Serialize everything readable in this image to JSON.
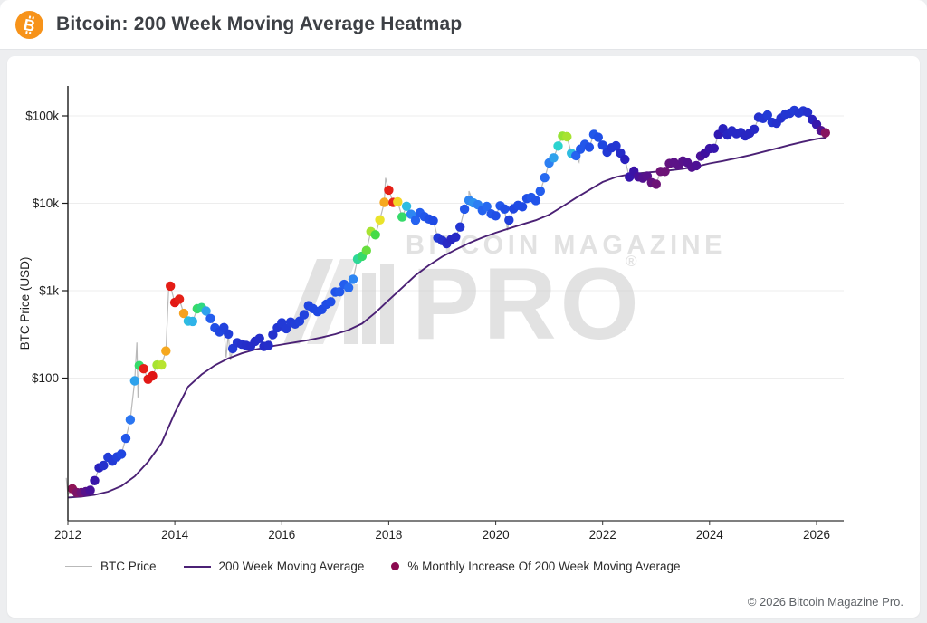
{
  "header": {
    "title": "Bitcoin: 200 Week Moving Average Heatmap",
    "icon": "bitcoin-logo",
    "icon_color": "#f7931a"
  },
  "watermark": {
    "line1": "BITCOIN MAGAZINE",
    "line2": "PRO",
    "reg": "®"
  },
  "footer": {
    "copyright": "© 2026 Bitcoin Magazine Pro."
  },
  "legend": {
    "items": [
      {
        "label": "BTC Price",
        "type": "line",
        "color": "#b9b9b9"
      },
      {
        "label": "200 Week Moving Average",
        "type": "line",
        "color": "#4b2175"
      },
      {
        "label": "% Monthly Increase Of 200 Week Moving Average",
        "type": "dot",
        "color": "#8b0a50"
      }
    ]
  },
  "chart_data": {
    "type": "scatter+line",
    "title": "Bitcoin: 200 Week Moving Average Heatmap",
    "xlabel": "",
    "ylabel": "BTC Price (USD)",
    "y_scale": "log",
    "grid": "horizontal-major",
    "legend_position": "bottom",
    "x_ticks": [
      2012,
      2014,
      2016,
      2018,
      2020,
      2022,
      2024,
      2026
    ],
    "y_ticks": [
      {
        "label": "$100k",
        "value": 100000
      },
      {
        "label": "$10k",
        "value": 10000
      },
      {
        "label": "$1k",
        "value": 1000
      },
      {
        "label": "$100",
        "value": 100
      }
    ],
    "xlim": [
      2011.93,
      2026.5
    ],
    "ylim": [
      2.3,
      220000
    ],
    "colors": {
      "btc_line": "#b9b9b9",
      "ma_line": "#4b2175",
      "legend_dot": "#8b0a50",
      "grid": "#ededed"
    },
    "colormap_label": "% monthly increase of 200 week moving average",
    "colormap": [
      [
        0.0,
        "#8e1457"
      ],
      [
        0.6,
        "#5c1287"
      ],
      [
        1.2,
        "#3f10a0"
      ],
      [
        2.0,
        "#2b1cb8"
      ],
      [
        3.0,
        "#2336d2"
      ],
      [
        4.0,
        "#1f4ae4"
      ],
      [
        5.0,
        "#2563f0"
      ],
      [
        6.0,
        "#2e86f2"
      ],
      [
        6.8,
        "#2fb3e8"
      ],
      [
        7.5,
        "#2bd3cf"
      ],
      [
        8.3,
        "#30d977"
      ],
      [
        9.0,
        "#46db48"
      ],
      [
        10.0,
        "#8ae135"
      ],
      [
        11.0,
        "#c3e52e"
      ],
      [
        12.2,
        "#f2e229"
      ],
      [
        13.5,
        "#f6a81f"
      ],
      [
        14.3,
        "#f4711d"
      ],
      [
        15.0,
        "#e92a1a"
      ],
      [
        16.0,
        "#e01414"
      ]
    ],
    "series": [
      {
        "year": 2012,
        "price": [
          5.4,
          4.9,
          4.9,
          5.0,
          5.2,
          6.7,
          9.4,
          10.0,
          12.4,
          11.2,
          12.5,
          13.5
        ],
        "ma_pct": [
          0.0,
          0.2,
          0.4,
          0.7,
          1.0,
          1.5,
          2.2,
          2.8,
          3.3,
          3.2,
          3.5,
          3.8
        ]
      },
      {
        "year": 2013,
        "price": [
          20.4,
          33.4,
          93,
          139,
          128,
          97,
          106,
          141,
          141,
          204,
          1130,
          732
        ],
        "ma_pct": [
          4.5,
          5.5,
          6.5,
          8.5,
          15.5,
          15.8,
          16.0,
          10.5,
          10.8,
          13.5,
          15.6,
          15.8
        ]
      },
      {
        "year": 2014,
        "price": [
          800,
          550,
          450,
          445,
          620,
          640,
          585,
          480,
          375,
          338,
          378,
          320
        ],
        "ma_pct": [
          15.4,
          13.6,
          7.0,
          6.8,
          8.5,
          8.2,
          6.5,
          4.8,
          4.2,
          3.8,
          3.6,
          3.4
        ]
      },
      {
        "year": 2015,
        "price": [
          217,
          254,
          244,
          236,
          230,
          263,
          284,
          230,
          236,
          314,
          377,
          430
        ],
        "ma_pct": [
          3.2,
          3.0,
          2.8,
          2.7,
          2.6,
          2.6,
          2.7,
          2.6,
          2.7,
          2.8,
          3.0,
          3.2
        ]
      },
      {
        "year": 2016,
        "price": [
          368,
          437,
          416,
          448,
          531,
          673,
          624,
          575,
          609,
          700,
          745,
          964
        ],
        "ma_pct": [
          3.2,
          3.3,
          3.4,
          3.5,
          3.6,
          3.8,
          3.9,
          3.9,
          4.0,
          4.1,
          4.2,
          4.4
        ]
      },
      {
        "year": 2017,
        "price": [
          970,
          1180,
          1080,
          1350,
          2300,
          2480,
          2875,
          4735,
          4360,
          6468,
          10233,
          14156
        ],
        "ma_pct": [
          4.6,
          4.8,
          5.2,
          6.0,
          8.0,
          8.5,
          9.5,
          10.5,
          9.0,
          12.0,
          13.5,
          15.5
        ]
      },
      {
        "year": 2018,
        "price": [
          10221,
          10397,
          6973,
          9240,
          7494,
          6404,
          7780,
          7037,
          6625,
          6317,
          4017,
          3742
        ],
        "ma_pct": [
          15.2,
          12.5,
          8.5,
          7.0,
          6.0,
          5.0,
          4.8,
          4.5,
          4.2,
          4.0,
          3.2,
          2.8
        ]
      },
      {
        "year": 2019,
        "price": [
          3457,
          3854,
          4105,
          5350,
          8574,
          10817,
          10085,
          9630,
          8293,
          9199,
          7569,
          7193
        ],
        "ma_pct": [
          2.5,
          2.4,
          2.5,
          3.0,
          4.5,
          6.0,
          6.2,
          5.8,
          5.0,
          5.2,
          4.5,
          4.2
        ]
      },
      {
        "year": 2020,
        "price": [
          9350,
          8599,
          6438,
          8658,
          9461,
          9137,
          11351,
          11655,
          10778,
          13781,
          19625,
          28994
        ],
        "ma_pct": [
          4.5,
          4.2,
          3.5,
          3.8,
          4.0,
          4.0,
          4.2,
          4.5,
          4.4,
          4.8,
          5.2,
          5.8
        ]
      },
      {
        "year": 2021,
        "price": [
          33114,
          45137,
          58787,
          57750,
          37333,
          35041,
          41626,
          47166,
          43791,
          61320,
          57006,
          46217
        ],
        "ma_pct": [
          6.5,
          7.5,
          10.2,
          10.5,
          7.0,
          5.0,
          4.5,
          4.5,
          4.2,
          4.5,
          4.2,
          3.8
        ]
      },
      {
        "year": 2022,
        "price": [
          38483,
          43193,
          45539,
          37714,
          31792,
          19985,
          23336,
          20050,
          19432,
          20495,
          17168,
          16547
        ],
        "ma_pct": [
          3.2,
          3.0,
          3.0,
          2.6,
          2.2,
          1.6,
          1.4,
          1.0,
          0.8,
          0.7,
          0.5,
          0.4
        ]
      },
      {
        "year": 2023,
        "price": [
          23139,
          23147,
          28478,
          29268,
          27219,
          30477,
          29230,
          25932,
          26967,
          34667,
          37718,
          42265
        ],
        "ma_pct": [
          0.4,
          0.4,
          0.5,
          0.6,
          0.6,
          0.7,
          0.8,
          0.8,
          0.9,
          1.0,
          1.2,
          1.4
        ]
      },
      {
        "year": 2024,
        "price": [
          42580,
          61198,
          71333,
          60636,
          67491,
          62678,
          64619,
          58969,
          63329,
          70215,
          96449,
          93429
        ],
        "ma_pct": [
          1.6,
          1.8,
          2.2,
          2.4,
          2.5,
          2.5,
          2.5,
          2.4,
          2.4,
          2.5,
          2.8,
          3.0
        ]
      },
      {
        "year": 2025,
        "price": [
          102400,
          84373,
          82549,
          94207,
          104600,
          107100,
          115800,
          108200,
          114000,
          110000,
          91000,
          80000
        ],
        "ma_pct": [
          3.2,
          3.0,
          2.8,
          2.8,
          3.0,
          3.0,
          3.2,
          3.0,
          3.0,
          2.8,
          2.2,
          1.6
        ]
      },
      {
        "year": 2026,
        "price": [
          68000,
          64000
        ],
        "ma_pct": [
          0.8,
          0.1
        ]
      }
    ],
    "price_wicks": [
      [
        2011.97,
        7.2
      ],
      [
        2012.0,
        4.6
      ],
      [
        2013.29,
        255
      ],
      [
        2013.31,
        60
      ],
      [
        2013.89,
        1230
      ],
      [
        2014.96,
        172
      ],
      [
        2015.04,
        160
      ],
      [
        2017.94,
        19500
      ],
      [
        2019.5,
        13800
      ],
      [
        2020.22,
        4900
      ],
      [
        2021.32,
        64500
      ],
      [
        2021.56,
        29700
      ],
      [
        2021.87,
        68500
      ],
      [
        2022.89,
        15500
      ],
      [
        2024.21,
        73500
      ],
      [
        2025.07,
        109000
      ],
      [
        2025.58,
        124000
      ],
      [
        2025.92,
        84000
      ]
    ],
    "ma_line": [
      [
        2012.0,
        4.3
      ],
      [
        2012.25,
        4.4
      ],
      [
        2012.5,
        4.6
      ],
      [
        2012.75,
        5.0
      ],
      [
        2013.0,
        5.8
      ],
      [
        2013.25,
        7.5
      ],
      [
        2013.5,
        11
      ],
      [
        2013.75,
        18
      ],
      [
        2014.0,
        40
      ],
      [
        2014.25,
        80
      ],
      [
        2014.5,
        110
      ],
      [
        2014.75,
        140
      ],
      [
        2015.0,
        168
      ],
      [
        2015.25,
        192
      ],
      [
        2015.5,
        212
      ],
      [
        2015.75,
        228
      ],
      [
        2016.0,
        242
      ],
      [
        2016.25,
        256
      ],
      [
        2016.5,
        272
      ],
      [
        2016.75,
        292
      ],
      [
        2017.0,
        318
      ],
      [
        2017.25,
        355
      ],
      [
        2017.5,
        420
      ],
      [
        2017.75,
        560
      ],
      [
        2018.0,
        780
      ],
      [
        2018.25,
        1080
      ],
      [
        2018.5,
        1500
      ],
      [
        2018.75,
        1950
      ],
      [
        2019.0,
        2450
      ],
      [
        2019.25,
        2950
      ],
      [
        2019.5,
        3500
      ],
      [
        2019.75,
        4050
      ],
      [
        2020.0,
        4600
      ],
      [
        2020.25,
        5150
      ],
      [
        2020.5,
        5750
      ],
      [
        2020.75,
        6400
      ],
      [
        2021.0,
        7400
      ],
      [
        2021.25,
        9200
      ],
      [
        2021.5,
        11500
      ],
      [
        2021.75,
        14200
      ],
      [
        2022.0,
        17500
      ],
      [
        2022.25,
        20000
      ],
      [
        2022.5,
        21500
      ],
      [
        2022.75,
        22300
      ],
      [
        2023.0,
        23000
      ],
      [
        2023.25,
        23800
      ],
      [
        2023.5,
        24800
      ],
      [
        2023.75,
        26200
      ],
      [
        2024.0,
        28600
      ],
      [
        2024.25,
        30500
      ],
      [
        2024.5,
        32800
      ],
      [
        2024.75,
        35500
      ],
      [
        2025.0,
        38800
      ],
      [
        2025.25,
        42500
      ],
      [
        2025.5,
        46500
      ],
      [
        2025.75,
        50500
      ],
      [
        2026.0,
        54500
      ],
      [
        2026.17,
        56500
      ]
    ]
  }
}
